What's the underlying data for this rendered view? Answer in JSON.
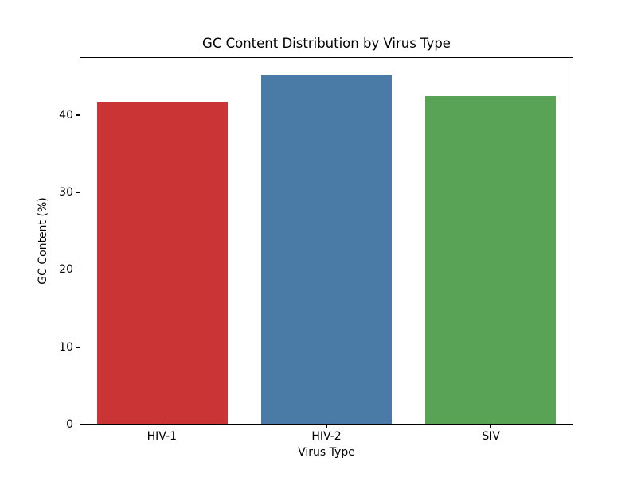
{
  "figure": {
    "background": "#ffffff",
    "spine_color": "#000000",
    "text_color": "#000000"
  },
  "chart_data": {
    "type": "bar",
    "title": "GC Content Distribution by Virus Type",
    "xlabel": "Virus Type",
    "ylabel": "GC Content (%)",
    "categories": [
      "HIV-1",
      "HIV-2",
      "SIV"
    ],
    "values": [
      41.8,
      45.3,
      42.5
    ],
    "bar_colors": [
      "#ca3435",
      "#4a7ba7",
      "#58a356"
    ],
    "bar_width_fraction": 0.8,
    "ylim": [
      0,
      47.5
    ],
    "yticks": [
      0,
      10,
      20,
      30,
      40
    ],
    "grid": false,
    "legend_position": "none"
  }
}
